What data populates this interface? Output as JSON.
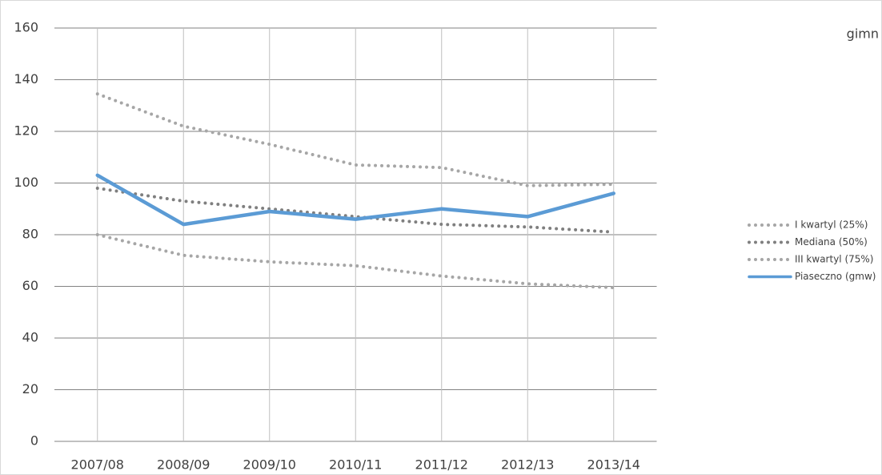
{
  "chart_data": {
    "type": "line",
    "title": "gimn",
    "categories": [
      "2007/08",
      "2008/09",
      "2009/10",
      "2010/11",
      "2011/12",
      "2012/13",
      "2013/14"
    ],
    "series": [
      {
        "name": "I kwartyl (25%)",
        "color": "#a6a6a6",
        "style": "dot",
        "values": [
          134.5,
          122,
          115,
          107,
          106,
          99,
          99.5
        ]
      },
      {
        "name": "Mediana (50%)",
        "color": "#7f7f7f",
        "style": "dot",
        "values": [
          98,
          93,
          90,
          87,
          84,
          83,
          81
        ]
      },
      {
        "name": "III kwartyl (75%)",
        "color": "#a6a6a6",
        "style": "dot",
        "values": [
          80,
          72,
          69.5,
          68,
          64,
          61,
          59.5
        ]
      },
      {
        "name": "Piaseczno (gmw)",
        "color": "#5b9bd5",
        "style": "solid",
        "values": [
          103,
          84,
          89,
          86,
          90,
          87,
          96
        ]
      }
    ],
    "ylim": [
      0,
      160
    ],
    "yticks": [
      0,
      20,
      40,
      60,
      80,
      100,
      120,
      140,
      160
    ],
    "grid": true,
    "legend": "right"
  }
}
